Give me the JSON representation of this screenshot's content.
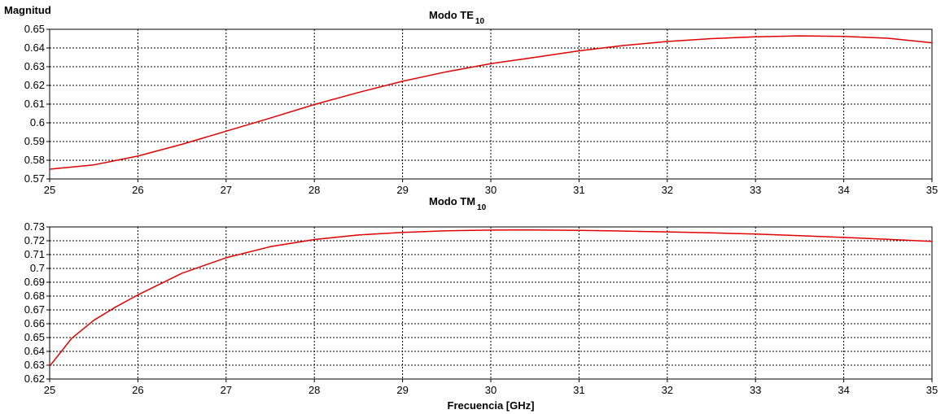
{
  "chart_data": [
    {
      "type": "line",
      "title": "Modo TE",
      "title_subscript": "10",
      "ylabel": "Magnitud",
      "xlabel": "",
      "xlim": [
        25,
        35
      ],
      "ylim": [
        0.57,
        0.65
      ],
      "x_ticks": [
        25,
        26,
        27,
        28,
        29,
        30,
        31,
        32,
        33,
        34,
        35
      ],
      "y_ticks": [
        0.57,
        0.58,
        0.59,
        0.6,
        0.61,
        0.62,
        0.63,
        0.64,
        0.65
      ],
      "y_tick_labels": [
        "0.57",
        "0.58",
        "0.59",
        "0.6",
        "0.61",
        "0.62",
        "0.63",
        "0.64",
        "0.65"
      ],
      "grid": true,
      "line_color": "#e00000",
      "series": [
        {
          "x": [
            25,
            25.5,
            26,
            26.5,
            27,
            27.5,
            28,
            28.5,
            29,
            29.5,
            30,
            30.5,
            31,
            31.5,
            32,
            32.5,
            33,
            33.5,
            34,
            34.5,
            35
          ],
          "y": [
            0.5752,
            0.5775,
            0.5822,
            0.5885,
            0.5955,
            0.6025,
            0.6098,
            0.6162,
            0.6222,
            0.6273,
            0.6316,
            0.635,
            0.6385,
            0.6413,
            0.6435,
            0.645,
            0.646,
            0.6465,
            0.6462,
            0.6452,
            0.6428
          ]
        }
      ]
    },
    {
      "type": "line",
      "title": "Modo TM",
      "title_subscript": "10",
      "ylabel": "",
      "xlabel": "Frecuencia  [GHz]",
      "xlim": [
        25,
        35
      ],
      "ylim": [
        0.62,
        0.73
      ],
      "x_ticks": [
        25,
        26,
        27,
        28,
        29,
        30,
        31,
        32,
        33,
        34,
        35
      ],
      "y_ticks": [
        0.62,
        0.63,
        0.64,
        0.65,
        0.66,
        0.67,
        0.68,
        0.69,
        0.7,
        0.71,
        0.72,
        0.73
      ],
      "y_tick_labels": [
        "0.62",
        "0.63",
        "0.64",
        "0.65",
        "0.66",
        "0.67",
        "0.68",
        "0.69",
        "0.7",
        "0.71",
        "0.72",
        "0.73"
      ],
      "grid": true,
      "line_color": "#e00000",
      "series": [
        {
          "x": [
            25,
            25.25,
            25.5,
            25.75,
            26,
            26.5,
            27,
            27.5,
            28,
            28.5,
            29,
            29.5,
            30,
            30.5,
            31,
            31.5,
            32,
            32.5,
            33,
            33.5,
            34,
            34.5,
            35
          ],
          "y": [
            0.6293,
            0.6495,
            0.6625,
            0.6722,
            0.6808,
            0.6965,
            0.7077,
            0.7157,
            0.7209,
            0.7242,
            0.726,
            0.7272,
            0.7277,
            0.7278,
            0.7275,
            0.727,
            0.7264,
            0.7257,
            0.7248,
            0.7237,
            0.7224,
            0.721,
            0.7195
          ]
        }
      ]
    }
  ]
}
